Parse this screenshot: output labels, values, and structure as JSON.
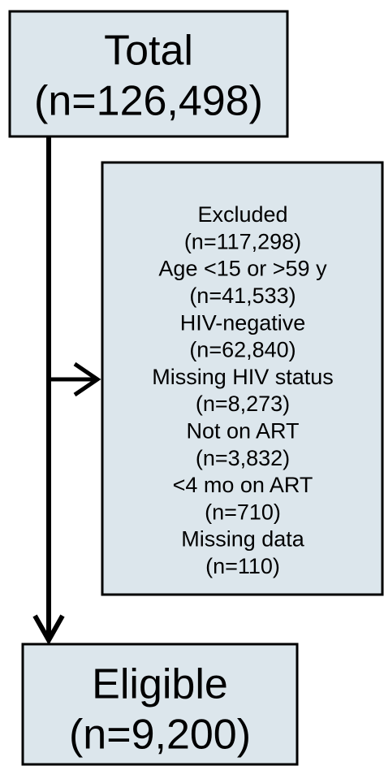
{
  "nodes": [
    {
      "lines": [
        "Total",
        "(n=126,498)"
      ]
    },
    {
      "lines": [
        "Excluded",
        "(n=117,298)",
        "Age <15 or >59 y",
        "(n=41,533)",
        "HIV-negative",
        "(n=62,840)",
        "Missing HIV status",
        "(n=8,273)",
        "Not on ART",
        "(n=3,832)",
        "<4 mo on ART",
        "(n=710)",
        "Missing data",
        "(n=110)"
      ]
    },
    {
      "lines": [
        "Eligible",
        "(n=9,200)"
      ]
    }
  ]
}
